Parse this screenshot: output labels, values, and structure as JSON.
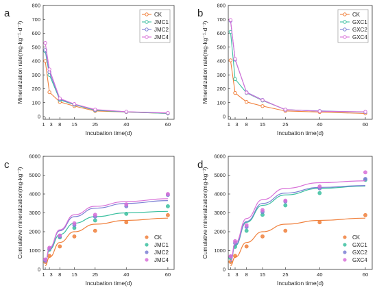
{
  "colors": {
    "CK": "#f0803c",
    "JMC1": "#3cc0a0",
    "JMC2": "#7b7fd4",
    "JMC4": "#d870d8",
    "GXC1": "#3cc0a0",
    "GXC2": "#7b7fd4",
    "GXC4": "#d870d8"
  },
  "chart_data": [
    {
      "panel": "a",
      "type": "line",
      "xlabel": "Incubation time(d)",
      "ylabel": "Mineralization rate(mg·kg⁻¹·d⁻¹)",
      "xlim": [
        0,
        63
      ],
      "ylim": [
        -20,
        800
      ],
      "xticks": [
        1,
        3,
        8,
        15,
        25,
        40,
        60
      ],
      "yticks": [
        0,
        100,
        200,
        300,
        400,
        500,
        600,
        700,
        800
      ],
      "legend_position": "top-right",
      "x": [
        1,
        3,
        8,
        15,
        25,
        40,
        60
      ],
      "series": [
        {
          "name": "CK",
          "values": [
            400,
            175,
            105,
            75,
            40,
            32,
            22
          ]
        },
        {
          "name": "JMC1",
          "values": [
            470,
            300,
            120,
            85,
            45,
            33,
            22
          ]
        },
        {
          "name": "JMC2",
          "values": [
            480,
            320,
            125,
            88,
            48,
            34,
            24
          ]
        },
        {
          "name": "JMC4",
          "values": [
            530,
            340,
            130,
            90,
            50,
            35,
            26
          ]
        }
      ]
    },
    {
      "panel": "b",
      "type": "line",
      "xlabel": "Incubation time(d)",
      "ylabel": "Mineralization rate(mg·kg⁻¹·d⁻¹)",
      "xlim": [
        0,
        63
      ],
      "ylim": [
        -20,
        800
      ],
      "xticks": [
        1,
        3,
        8,
        15,
        25,
        40,
        60
      ],
      "yticks": [
        0,
        100,
        200,
        300,
        400,
        500,
        600,
        700,
        800
      ],
      "legend_position": "top-right",
      "x": [
        1,
        3,
        8,
        15,
        25,
        40,
        60
      ],
      "series": [
        {
          "name": "CK",
          "values": [
            405,
            170,
            105,
            75,
            40,
            32,
            22
          ]
        },
        {
          "name": "GXC1",
          "values": [
            610,
            270,
            170,
            115,
            50,
            38,
            32
          ]
        },
        {
          "name": "GXC2",
          "values": [
            690,
            410,
            175,
            120,
            48,
            40,
            33
          ]
        },
        {
          "name": "GXC4",
          "values": [
            695,
            415,
            172,
            118,
            50,
            38,
            34
          ]
        }
      ]
    },
    {
      "panel": "c",
      "type": "scatter",
      "xlabel": "Incubation time(d)",
      "ylabel": "Cumulative mineralization(mg·kg⁻¹)",
      "xlim": [
        0,
        63
      ],
      "ylim": [
        0,
        6000
      ],
      "xticks": [
        1,
        3,
        8,
        15,
        25,
        40,
        60
      ],
      "yticks": [
        0,
        1000,
        2000,
        3000,
        4000,
        5000,
        6000
      ],
      "legend_position": "bottom-right",
      "x": [
        1,
        3,
        8,
        15,
        25,
        40,
        60
      ],
      "series": [
        {
          "name": "CK",
          "values": [
            400,
            720,
            1220,
            1750,
            2050,
            2500,
            2880
          ],
          "fit": [
            200,
            650,
            1430,
            2000,
            2400,
            2600,
            2720
          ]
        },
        {
          "name": "JMC1",
          "values": [
            470,
            1050,
            1700,
            2200,
            2600,
            2950,
            3350
          ],
          "fit": [
            350,
            1050,
            1850,
            2450,
            2800,
            3000,
            3080
          ]
        },
        {
          "name": "JMC2",
          "values": [
            480,
            1100,
            1750,
            2350,
            2800,
            3350,
            3950
          ],
          "fit": [
            350,
            1100,
            2050,
            2800,
            3250,
            3500,
            3650
          ]
        },
        {
          "name": "JMC4",
          "values": [
            530,
            1150,
            1800,
            2450,
            2900,
            3450,
            4000
          ],
          "fit": [
            370,
            1150,
            2100,
            2900,
            3350,
            3600,
            3750
          ]
        }
      ]
    },
    {
      "panel": "d",
      "type": "scatter",
      "xlabel": "Incubation time(d)",
      "ylabel": "Cumulative mineralization(mg·kg⁻¹)",
      "xlim": [
        0,
        63
      ],
      "ylim": [
        0,
        6000
      ],
      "xticks": [
        1,
        3,
        8,
        15,
        25,
        40,
        60
      ],
      "yticks": [
        0,
        1000,
        2000,
        3000,
        4000,
        5000,
        6000
      ],
      "legend_position": "bottom-right",
      "x": [
        1,
        3,
        8,
        15,
        25,
        40,
        60
      ],
      "series": [
        {
          "name": "CK",
          "values": [
            400,
            720,
            1220,
            1750,
            2050,
            2500,
            2880
          ],
          "fit": [
            200,
            650,
            1430,
            2000,
            2400,
            2600,
            2720
          ]
        },
        {
          "name": "GXC1",
          "values": [
            610,
            1200,
            2050,
            2900,
            3400,
            4050,
            4750
          ],
          "fit": [
            400,
            1250,
            2500,
            3400,
            3950,
            4300,
            4420
          ]
        },
        {
          "name": "GXC2",
          "values": [
            690,
            1400,
            2250,
            3050,
            3600,
            4300,
            4800
          ],
          "fit": [
            420,
            1300,
            2550,
            3500,
            4050,
            4350,
            4450
          ]
        },
        {
          "name": "GXC4",
          "values": [
            695,
            1500,
            2350,
            3150,
            3650,
            4400,
            5150
          ],
          "fit": [
            430,
            1400,
            2700,
            3700,
            4300,
            4600,
            4700
          ]
        }
      ]
    }
  ]
}
